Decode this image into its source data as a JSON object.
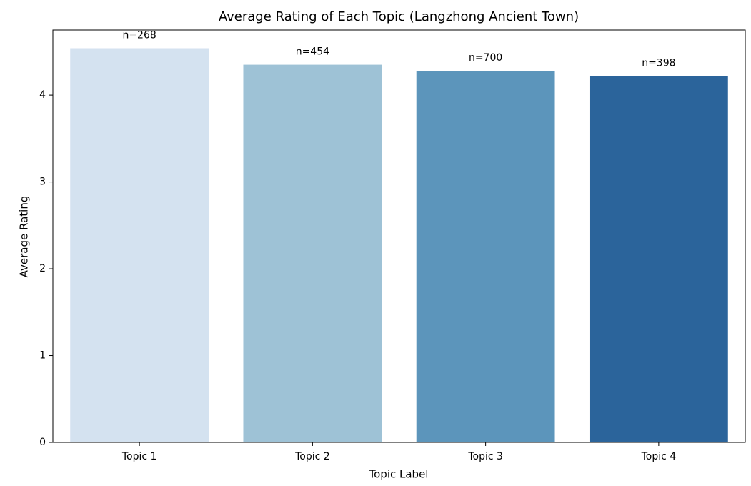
{
  "chart_data": {
    "type": "bar",
    "title": "Average Rating of Each Topic (Langzhong Ancient Town)",
    "x_label": "Topic Label",
    "y_label": "Average Rating",
    "categories": [
      "Topic 1",
      "Topic 2",
      "Topic 3",
      "Topic 4"
    ],
    "values": [
      4.54,
      4.35,
      4.28,
      4.22
    ],
    "bar_labels": [
      "n=268",
      "n=454",
      "n=700",
      "n=398"
    ],
    "colors": [
      "#d4e2f0",
      "#9ec2d6",
      "#5c95bb",
      "#2b649b"
    ],
    "ylim": [
      0,
      4.75
    ],
    "yticks": [
      0,
      1,
      2,
      3,
      4
    ],
    "grid": false
  }
}
